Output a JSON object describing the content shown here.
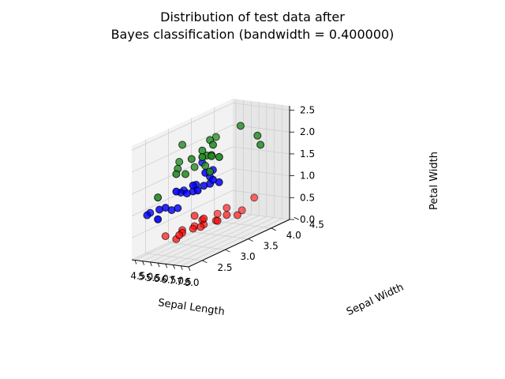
{
  "chart_data": {
    "type": "scatter3d",
    "title_lines": [
      "Distribution of test data after",
      "Bayes classification (bandwidth = 0.400000)"
    ],
    "xlabel": "Sepal Length",
    "ylabel": "Sepal Width",
    "zlabel": "Petal Width",
    "xlim": [
      4.3,
      8.0
    ],
    "ylim": [
      2.2,
      4.4
    ],
    "zlim": [
      0.0,
      2.6
    ],
    "xticks": [
      "4.5",
      "5.0",
      "5.5",
      "6.0",
      "6.5",
      "7.0",
      "7.5",
      "8.0"
    ],
    "yticks": [
      "2.5",
      "3.0",
      "3.5",
      "4.0",
      "4.5"
    ],
    "zticks": [
      "0.0",
      "0.5",
      "1.0",
      "1.5",
      "2.0",
      "2.5"
    ],
    "grid": true,
    "series": [
      {
        "color": "#ff0000",
        "points": [
          [
            4.4,
            2.9,
            0.2
          ],
          [
            4.6,
            3.2,
            0.2
          ],
          [
            4.8,
            3.0,
            0.1
          ],
          [
            4.9,
            3.1,
            0.2
          ],
          [
            5.0,
            3.0,
            0.2
          ],
          [
            5.0,
            3.5,
            0.3
          ],
          [
            5.1,
            3.5,
            0.2
          ],
          [
            5.1,
            3.8,
            0.3
          ],
          [
            5.2,
            3.4,
            0.2
          ],
          [
            5.4,
            3.9,
            0.4
          ],
          [
            5.4,
            3.7,
            0.2
          ],
          [
            5.5,
            4.2,
            0.2
          ],
          [
            5.7,
            4.4,
            0.4
          ],
          [
            5.7,
            3.8,
            0.3
          ],
          [
            5.8,
            4.0,
            0.2
          ],
          [
            5.0,
            3.3,
            0.2
          ],
          [
            4.8,
            3.4,
            0.2
          ],
          [
            5.3,
            3.7,
            0.2
          ],
          [
            5.1,
            3.3,
            0.5
          ],
          [
            5.4,
            3.4,
            0.4
          ]
        ]
      },
      {
        "color": "#0000ff",
        "points": [
          [
            4.9,
            2.4,
            1.0
          ],
          [
            5.0,
            2.3,
            1.0
          ],
          [
            5.5,
            2.4,
            1.1
          ],
          [
            5.6,
            2.5,
            1.1
          ],
          [
            5.7,
            2.6,
            1.0
          ],
          [
            5.6,
            2.9,
            1.3
          ],
          [
            5.7,
            2.8,
            1.3
          ],
          [
            5.8,
            2.7,
            1.0
          ],
          [
            6.0,
            2.2,
            1.0
          ],
          [
            6.1,
            2.8,
            1.3
          ],
          [
            6.2,
            2.9,
            1.3
          ],
          [
            6.3,
            2.5,
            1.5
          ],
          [
            6.4,
            3.2,
            1.5
          ],
          [
            6.5,
            2.8,
            1.5
          ],
          [
            6.6,
            3.0,
            1.4
          ],
          [
            6.7,
            3.1,
            1.4
          ],
          [
            6.8,
            2.8,
            1.4
          ],
          [
            6.9,
            3.1,
            1.5
          ],
          [
            7.0,
            3.2,
            1.4
          ],
          [
            6.1,
            3.0,
            1.4
          ],
          [
            5.9,
            3.2,
            1.8
          ],
          [
            6.3,
            3.3,
            1.6
          ],
          [
            6.7,
            3.0,
            1.7
          ]
        ]
      },
      {
        "color": "#228b22",
        "points": [
          [
            5.6,
            2.8,
            2.0
          ],
          [
            5.8,
            2.8,
            2.4
          ],
          [
            5.8,
            2.7,
            1.9
          ],
          [
            6.0,
            2.2,
            1.5
          ],
          [
            6.0,
            3.0,
            1.8
          ],
          [
            6.3,
            2.5,
            1.9
          ],
          [
            6.3,
            2.7,
            1.8
          ],
          [
            6.4,
            2.8,
            2.1
          ],
          [
            6.5,
            3.0,
            2.2
          ],
          [
            6.7,
            3.1,
            2.4
          ],
          [
            6.8,
            3.0,
            2.1
          ],
          [
            6.9,
            3.1,
            2.3
          ],
          [
            7.1,
            3.0,
            2.1
          ],
          [
            7.2,
            3.6,
            2.5
          ],
          [
            7.3,
            2.9,
            1.8
          ],
          [
            7.6,
            3.0,
            2.1
          ],
          [
            7.7,
            3.8,
            2.2
          ],
          [
            7.7,
            2.6,
            2.3
          ],
          [
            7.9,
            3.8,
            2.0
          ],
          [
            6.2,
            3.4,
            2.3
          ],
          [
            6.4,
            3.1,
            1.8
          ],
          [
            6.5,
            3.2,
            2.0
          ]
        ]
      }
    ]
  }
}
